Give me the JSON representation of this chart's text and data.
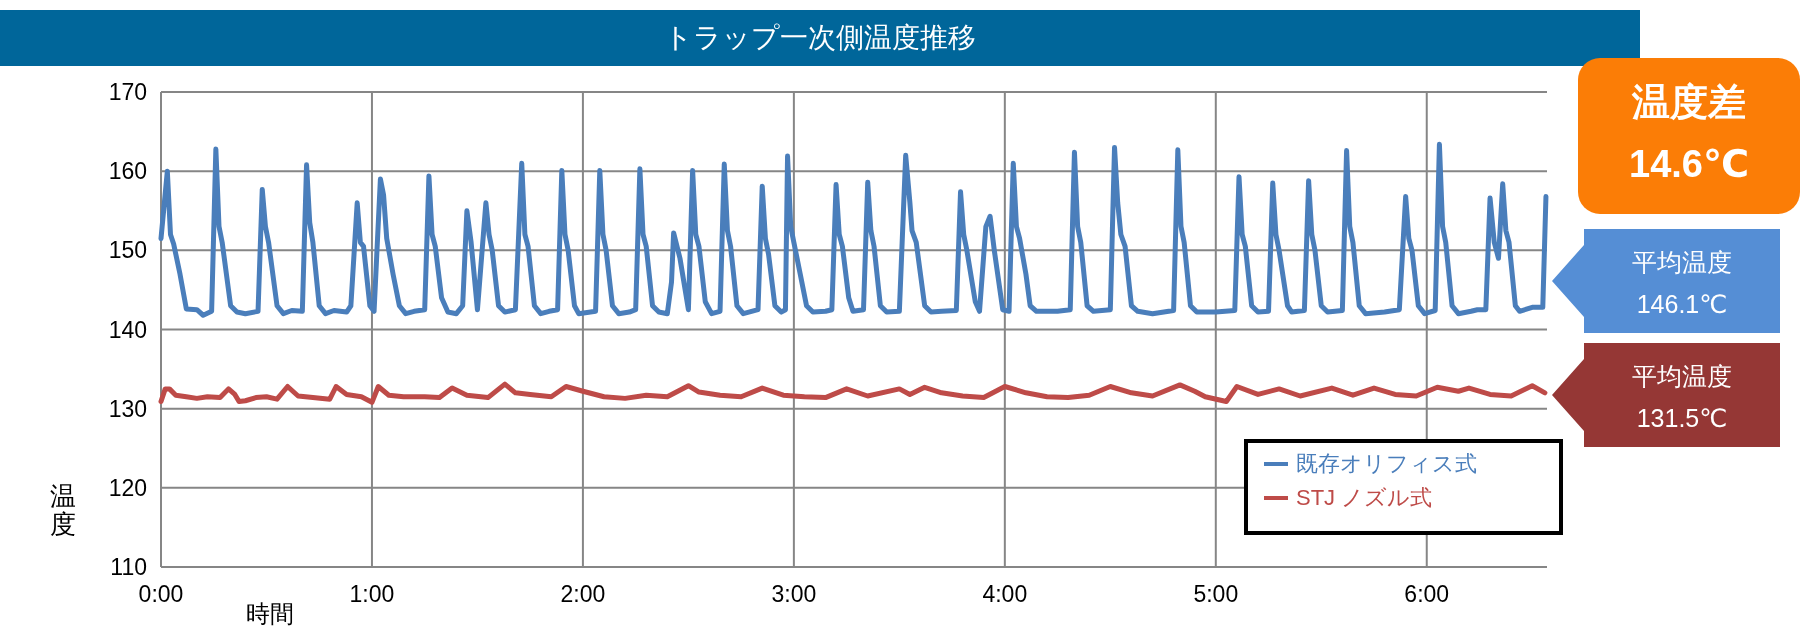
{
  "chart_data": {
    "type": "line",
    "title": "トラップ一次側温度推移",
    "xlabel": "時間",
    "ylabel": "温度",
    "xlim": [
      0,
      6.57
    ],
    "xticks": [
      {
        "value": 0,
        "label": "0:00"
      },
      {
        "value": 1,
        "label": "1:00"
      },
      {
        "value": 2,
        "label": "2:00"
      },
      {
        "value": 3,
        "label": "3:00"
      },
      {
        "value": 4,
        "label": "4:00"
      },
      {
        "value": 5,
        "label": "5:00"
      },
      {
        "value": 6,
        "label": "6:00"
      }
    ],
    "ylim": [
      110,
      170
    ],
    "yticks": [
      110,
      120,
      130,
      140,
      150,
      160,
      170
    ],
    "grid": true,
    "legend": "bottom right",
    "line_style": "solid",
    "series": [
      {
        "name": "既存オリフィス式",
        "color": "#4a7ebb",
        "x": [
          0,
          0.03,
          0.045,
          0.06,
          0.09,
          0.12,
          0.17,
          0.2,
          0.24,
          0.26,
          0.275,
          0.29,
          0.33,
          0.36,
          0.4,
          0.46,
          0.48,
          0.495,
          0.51,
          0.55,
          0.58,
          0.62,
          0.67,
          0.69,
          0.705,
          0.72,
          0.75,
          0.78,
          0.82,
          0.88,
          0.9,
          0.93,
          0.945,
          0.96,
          0.99,
          1.01,
          1.04,
          1.055,
          1.07,
          1.1,
          1.13,
          1.16,
          1.2,
          1.25,
          1.27,
          1.285,
          1.3,
          1.33,
          1.36,
          1.4,
          1.43,
          1.45,
          1.47,
          1.5,
          1.54,
          1.555,
          1.57,
          1.6,
          1.63,
          1.68,
          1.71,
          1.725,
          1.74,
          1.77,
          1.8,
          1.84,
          1.88,
          1.9,
          1.915,
          1.93,
          1.96,
          1.98,
          2.06,
          2.08,
          2.095,
          2.11,
          2.14,
          2.17,
          2.22,
          2.25,
          2.27,
          2.285,
          2.3,
          2.33,
          2.36,
          2.4,
          2.42,
          2.43,
          2.46,
          2.5,
          2.52,
          2.535,
          2.55,
          2.58,
          2.61,
          2.65,
          2.67,
          2.685,
          2.7,
          2.73,
          2.76,
          2.83,
          2.85,
          2.865,
          2.88,
          2.91,
          2.94,
          2.96,
          2.97,
          2.985,
          3,
          3.03,
          3.06,
          3.09,
          3.15,
          3.18,
          3.2,
          3.215,
          3.23,
          3.26,
          3.28,
          3.33,
          3.35,
          3.365,
          3.38,
          3.41,
          3.44,
          3.5,
          3.53,
          3.55,
          3.56,
          3.58,
          3.62,
          3.65,
          3.7,
          3.77,
          3.79,
          3.805,
          3.82,
          3.86,
          3.88,
          3.91,
          3.93,
          3.95,
          3.99,
          4.02,
          4.04,
          4.055,
          4.07,
          4.1,
          4.12,
          4.15,
          4.25,
          4.31,
          4.33,
          4.345,
          4.36,
          4.39,
          4.42,
          4.5,
          4.52,
          4.535,
          4.55,
          4.57,
          4.6,
          4.63,
          4.7,
          4.8,
          4.82,
          4.835,
          4.85,
          4.88,
          4.91,
          5,
          5.09,
          5.11,
          5.125,
          5.14,
          5.17,
          5.2,
          5.25,
          5.27,
          5.285,
          5.3,
          5.34,
          5.36,
          5.42,
          5.44,
          5.455,
          5.47,
          5.5,
          5.53,
          5.6,
          5.62,
          5.635,
          5.65,
          5.68,
          5.71,
          5.8,
          5.87,
          5.9,
          5.915,
          5.93,
          5.96,
          5.99,
          6.04,
          6.06,
          6.075,
          6.09,
          6.12,
          6.15,
          6.21,
          6.24,
          6.28,
          6.3,
          6.32,
          6.34,
          6.36,
          6.375,
          6.39,
          6.42,
          6.44,
          6.5,
          6.55,
          6.565
        ],
        "values": [
          151.5,
          160,
          152,
          150.8,
          147,
          142.6,
          142.5,
          141.8,
          142.3,
          162.8,
          153,
          151,
          143,
          142.2,
          142,
          142.3,
          157.7,
          153,
          151,
          143,
          142,
          142.4,
          142.3,
          160.8,
          153.5,
          151,
          143,
          142,
          142.4,
          142.2,
          143,
          156,
          151,
          150.5,
          143,
          142.3,
          159,
          157,
          151.5,
          147,
          143,
          142,
          142.3,
          142.5,
          159.4,
          152,
          150.5,
          144,
          142.2,
          142,
          143,
          155,
          151,
          142.5,
          156,
          152,
          150,
          143,
          142.2,
          142.5,
          161,
          152,
          150.5,
          143,
          142,
          142.3,
          142.5,
          160.1,
          152,
          150,
          143,
          142,
          142.3,
          160.1,
          152,
          150,
          143,
          142,
          142.2,
          142.5,
          160.3,
          152,
          150.5,
          143,
          142.2,
          142,
          146,
          152.2,
          149,
          142.5,
          160.1,
          152,
          150.5,
          143.5,
          142,
          142.3,
          160.9,
          152.5,
          150.5,
          143,
          142,
          142.5,
          158.1,
          151.5,
          149.5,
          143,
          142.2,
          142.5,
          161.9,
          153,
          151,
          147,
          143,
          142.2,
          142.3,
          142.5,
          158.3,
          152,
          150.5,
          144,
          142.3,
          142.5,
          158.6,
          152.5,
          150.5,
          143,
          142.2,
          142.3,
          162,
          156,
          152.5,
          151,
          143,
          142.2,
          142.3,
          142.4,
          157.4,
          152,
          150,
          143.5,
          142.3,
          153,
          154.3,
          150,
          142.5,
          142.3,
          161,
          153,
          151.5,
          147,
          143,
          142.3,
          142.3,
          142.5,
          162.4,
          153,
          151,
          143,
          142.3,
          142.5,
          163,
          156,
          152,
          150.5,
          143,
          142.3,
          142,
          142.4,
          162.7,
          153,
          151,
          143,
          142.2,
          142.2,
          142.4,
          159.3,
          152,
          150.5,
          143,
          142.2,
          142.3,
          158.5,
          152,
          150,
          143,
          142.2,
          142.4,
          158.8,
          152,
          150,
          143,
          142.2,
          142.4,
          162.6,
          153,
          151,
          143,
          142,
          142.2,
          142.5,
          156.8,
          151.5,
          150,
          143,
          142,
          142.4,
          163.4,
          153,
          151,
          143,
          142,
          142.3,
          142.5,
          142.5,
          156.6,
          151,
          149,
          158.4,
          152.5,
          151,
          143,
          142.3,
          142.8,
          142.8,
          156.8
        ]
      },
      {
        "name": "STJ ノズル式",
        "color": "#be4b48",
        "x": [
          0,
          0.02,
          0.04,
          0.07,
          0.12,
          0.17,
          0.22,
          0.28,
          0.32,
          0.35,
          0.37,
          0.4,
          0.45,
          0.5,
          0.55,
          0.6,
          0.65,
          0.72,
          0.8,
          0.83,
          0.88,
          0.95,
          1.0,
          1.03,
          1.08,
          1.15,
          1.25,
          1.32,
          1.38,
          1.45,
          1.55,
          1.63,
          1.68,
          1.75,
          1.85,
          1.92,
          2.0,
          2.1,
          2.2,
          2.3,
          2.4,
          2.5,
          2.55,
          2.65,
          2.75,
          2.85,
          2.95,
          3.05,
          3.15,
          3.25,
          3.35,
          3.5,
          3.55,
          3.62,
          3.7,
          3.8,
          3.9,
          4.0,
          4.1,
          4.2,
          4.3,
          4.4,
          4.5,
          4.6,
          4.7,
          4.83,
          4.9,
          4.95,
          5.05,
          5.1,
          5.2,
          5.3,
          5.4,
          5.55,
          5.65,
          5.75,
          5.85,
          5.95,
          6.05,
          6.15,
          6.2,
          6.3,
          6.4,
          6.5,
          6.56
        ],
        "values": [
          130.9,
          132.5,
          132.5,
          131.7,
          131.5,
          131.3,
          131.5,
          131.4,
          132.5,
          131.8,
          130.9,
          131,
          131.4,
          131.5,
          131.2,
          132.8,
          131.6,
          131.4,
          131.2,
          132.8,
          131.8,
          131.5,
          130.8,
          132.8,
          131.7,
          131.5,
          131.5,
          131.4,
          132.6,
          131.7,
          131.4,
          133.1,
          132,
          131.8,
          131.5,
          132.8,
          132.2,
          131.5,
          131.3,
          131.7,
          131.5,
          132.9,
          132.1,
          131.7,
          131.5,
          132.6,
          131.7,
          131.5,
          131.4,
          132.5,
          131.6,
          132.5,
          131.8,
          132.7,
          132,
          131.6,
          131.4,
          132.8,
          132,
          131.5,
          131.4,
          131.7,
          132.8,
          132,
          131.6,
          133,
          132.2,
          131.5,
          130.9,
          132.8,
          131.8,
          132.5,
          131.6,
          132.6,
          131.7,
          132.6,
          131.8,
          131.6,
          132.7,
          132.2,
          132.6,
          131.8,
          131.6,
          132.9,
          132
        ]
      }
    ],
    "annotations": [
      "温度差\n14.6℃",
      "平均温度\n146.1℃",
      "平均温度\n131.5℃"
    ]
  }
}
